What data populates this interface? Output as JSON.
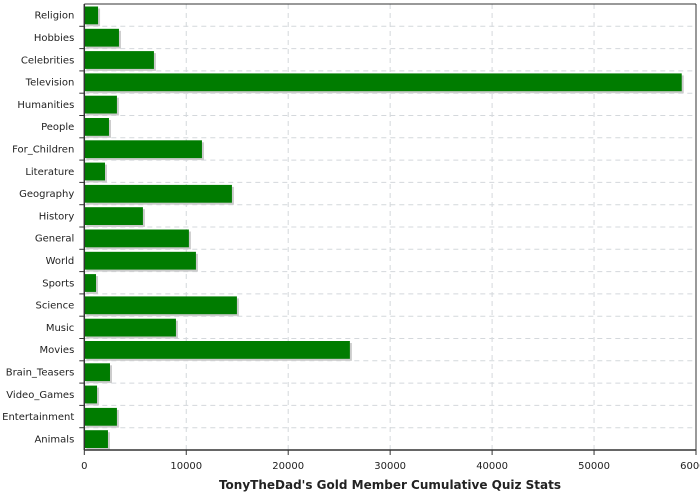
{
  "chart_data": {
    "type": "bar",
    "orientation": "horizontal",
    "title": "",
    "xlabel": "TonyTheDad's Gold Member Cumulative Quiz Stats",
    "ylabel": "",
    "xlim": [
      0,
      60000
    ],
    "xticks": [
      0,
      10000,
      20000,
      30000,
      40000,
      50000,
      60000
    ],
    "grid": true,
    "bar_color": "#007c00",
    "shadow_color": "#cccccc",
    "categories": [
      "Religion",
      "Hobbies",
      "Celebrities",
      "Television",
      "Humanities",
      "People",
      "For_Children",
      "Literature",
      "Geography",
      "History",
      "General",
      "World",
      "Sports",
      "Science",
      "Music",
      "Movies",
      "Brain_Teasers",
      "Video_Games",
      "Entertainment",
      "Animals"
    ],
    "values": [
      1350,
      3400,
      6830,
      58600,
      3200,
      2420,
      11540,
      2030,
      14480,
      5750,
      10260,
      10950,
      1150,
      14970,
      8990,
      26050,
      2520,
      1250,
      3200,
      2320
    ]
  }
}
